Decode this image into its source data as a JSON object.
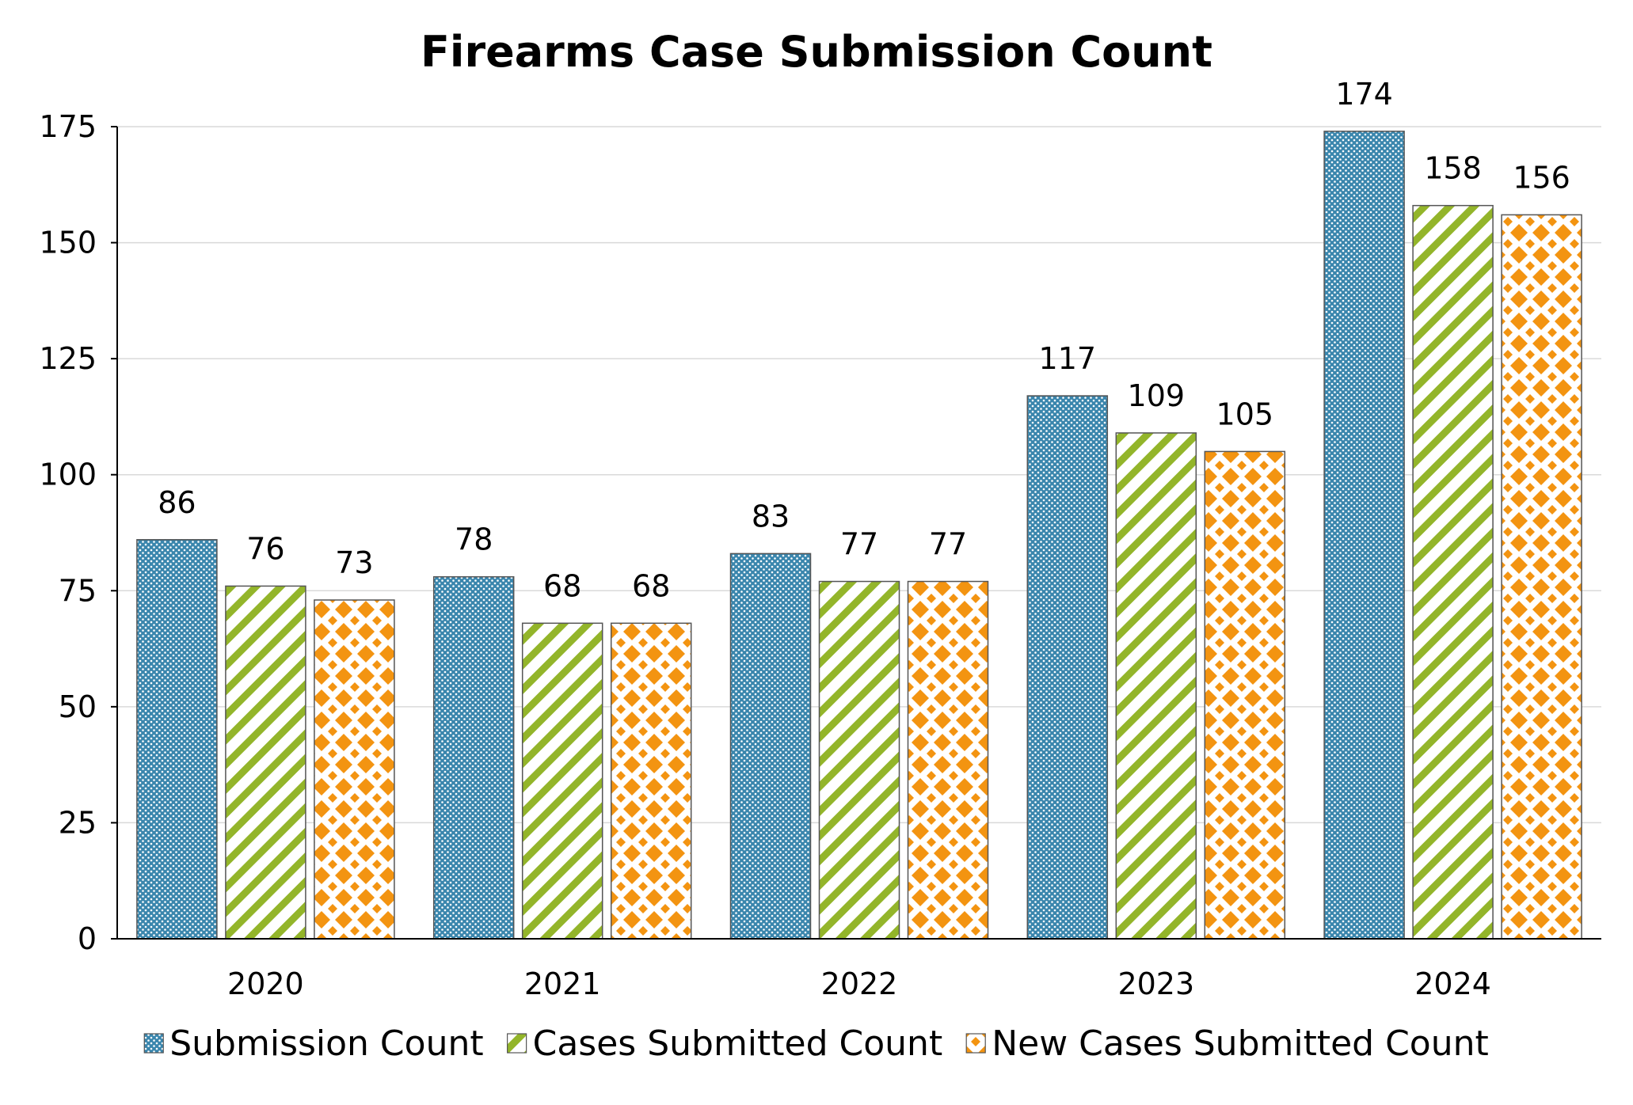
{
  "chart_data": {
    "type": "bar",
    "title": "Firearms Case Submission Count",
    "xlabel": "",
    "ylabel": "",
    "categories": [
      "2020",
      "2021",
      "2022",
      "2023",
      "2024"
    ],
    "ylim": [
      0,
      175
    ],
    "yticks": [
      0,
      25,
      50,
      75,
      100,
      125,
      150,
      175
    ],
    "grid": true,
    "legend_position": "bottom",
    "series": [
      {
        "name": "Submission Count",
        "values": [
          86,
          78,
          83,
          117,
          174
        ],
        "color": "#3a86ad",
        "pattern": "dots"
      },
      {
        "name": "Cases Submitted Count",
        "values": [
          76,
          68,
          77,
          109,
          158
        ],
        "color": "#93b52a",
        "pattern": "diagonal-stripes"
      },
      {
        "name": "New Cases Submitted Count",
        "values": [
          73,
          68,
          77,
          105,
          156
        ],
        "color": "#f39411",
        "pattern": "diamonds"
      }
    ]
  }
}
